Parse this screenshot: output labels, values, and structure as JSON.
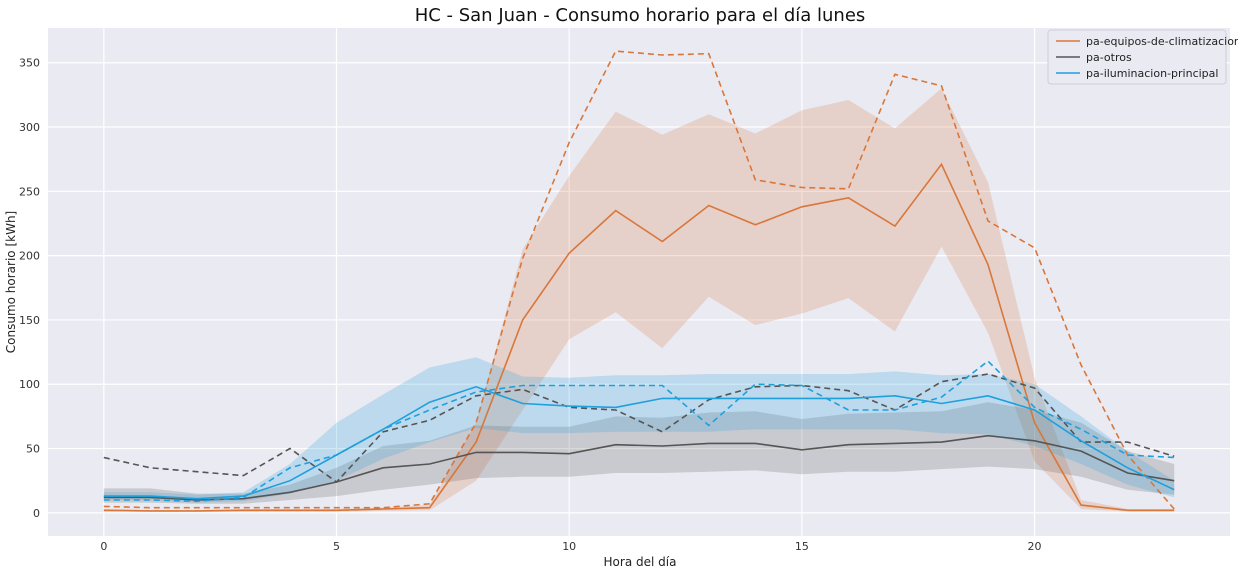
{
  "chart_data": {
    "type": "line",
    "title": "HC - San Juan - Consumo horario para el día lunes",
    "xlabel": "Hora del día",
    "ylabel": "Consumo horario [kWh]",
    "xlim": [
      -1.2,
      24.2
    ],
    "ylim": [
      -18,
      377
    ],
    "xticks": [
      0,
      5,
      10,
      15,
      20
    ],
    "yticks": [
      0,
      50,
      100,
      150,
      200,
      250,
      300,
      350
    ],
    "grid": true,
    "legend_position": "top-right",
    "x": [
      0,
      1,
      2,
      3,
      4,
      5,
      6,
      7,
      8,
      9,
      10,
      11,
      12,
      13,
      14,
      15,
      16,
      17,
      18,
      19,
      20,
      21,
      22,
      23
    ],
    "series": [
      {
        "name": "pa-equipos-de-climatizacion",
        "color": "#d9773a",
        "mean": [
          2,
          1.5,
          1.5,
          2,
          2,
          2,
          3,
          4,
          55,
          150,
          202,
          235,
          211,
          239,
          224,
          238,
          245,
          223,
          271,
          193,
          70,
          6,
          2,
          2
        ],
        "lower": [
          1,
          1,
          1,
          1,
          1,
          1,
          1.5,
          2,
          25,
          80,
          135,
          156,
          128,
          168,
          146,
          155,
          167,
          141,
          207,
          140,
          40,
          3,
          1,
          1
        ],
        "upper": [
          3,
          2,
          2,
          3,
          3,
          3,
          4,
          6,
          70,
          205,
          262,
          312,
          294,
          310,
          295,
          313,
          321,
          299,
          330,
          257,
          105,
          10,
          3,
          3
        ],
        "dashed": [
          5,
          4,
          4,
          4,
          4,
          4,
          4,
          7,
          70,
          198,
          288,
          359,
          356,
          357,
          259,
          253,
          252,
          341,
          332,
          227,
          206,
          115,
          45,
          3
        ]
      },
      {
        "name": "pa-otros",
        "color": "#555555",
        "mean": [
          12,
          12,
          10,
          11,
          16,
          24,
          35,
          38,
          47,
          47,
          46,
          53,
          52,
          54,
          54,
          49,
          53,
          54,
          55,
          60,
          56,
          48,
          31,
          25
        ],
        "lower": [
          8,
          8,
          7,
          7,
          10,
          13,
          18,
          22,
          27,
          28,
          28,
          31,
          31,
          32,
          33,
          30,
          32,
          32,
          34,
          36,
          34,
          28,
          18,
          14
        ],
        "upper": [
          19,
          19,
          15,
          15,
          22,
          35,
          52,
          56,
          68,
          67,
          67,
          75,
          74,
          78,
          79,
          73,
          77,
          78,
          79,
          86,
          80,
          70,
          48,
          38
        ],
        "dashed": [
          43,
          35,
          32,
          29,
          50,
          24,
          63,
          72,
          91,
          96,
          82,
          80,
          63,
          88,
          98,
          99,
          95,
          80,
          102,
          108,
          97,
          55,
          55,
          44
        ]
      },
      {
        "name": "pa-iluminacion-principal",
        "color": "#1ea0dc",
        "mean": [
          13,
          13,
          11,
          13,
          25,
          45,
          65,
          86,
          98,
          85,
          83,
          82,
          89,
          89,
          89,
          89,
          89,
          91,
          85,
          91,
          80,
          56,
          35,
          18
        ],
        "lower": [
          10,
          10,
          8,
          9,
          15,
          25,
          42,
          55,
          66,
          62,
          62,
          63,
          63,
          63,
          65,
          65,
          65,
          65,
          62,
          61,
          52,
          38,
          22,
          12
        ],
        "upper": [
          16,
          16,
          14,
          16,
          38,
          70,
          92,
          113,
          121,
          106,
          105,
          107,
          107,
          108,
          108,
          108,
          108,
          110,
          107,
          108,
          100,
          75,
          48,
          25
        ],
        "dashed": [
          10,
          10,
          9,
          12,
          35,
          45,
          65,
          80,
          94,
          99,
          99,
          99,
          99,
          68,
          100,
          99,
          80,
          80,
          90,
          118,
          82,
          65,
          45,
          43
        ]
      }
    ]
  }
}
